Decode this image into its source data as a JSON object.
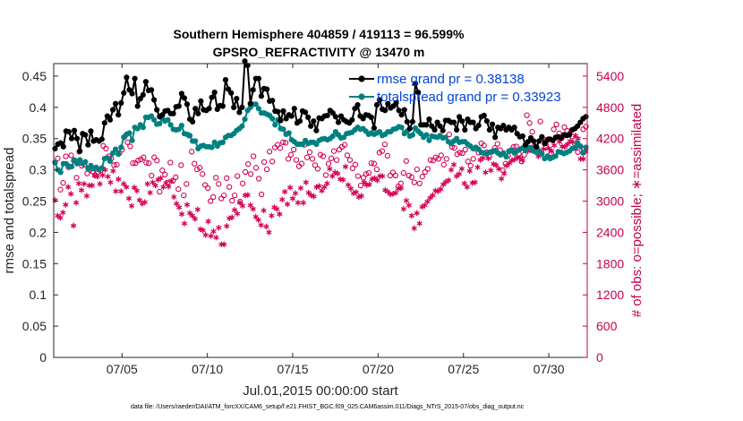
{
  "title_line1": "Southern Hemisphere 404859 / 419113 = 96.599%",
  "title_line2": "GPSRO_REFRACTIVITY @ 13470 m",
  "footer": "data file: /Users/raeder/DAI/ATM_forcXX/CAM6_setup/f.e21.FHIST_BGC.f09_025.CAM6assim.011/Diags_NTrS_2015-07/obs_diag_output.nc",
  "colors": {
    "rmse": "#000000",
    "spread": "#008080",
    "obs": "#d40055",
    "right_axis": "#c6004f",
    "legend_text": "#0044dd"
  },
  "chart_data": {
    "type": "line",
    "xlabel": "Jul.01,2015 00:00:00 start",
    "ylabel_left": "rmse and totalspread",
    "ylabel_right": "# of obs: o=possible; ∗=assimilated",
    "x_ticks": [
      "07/05",
      "07/10",
      "07/15",
      "07/20",
      "07/25",
      "07/30"
    ],
    "y_ticks_left": [
      "0",
      "0.05",
      "0.1",
      "0.15",
      "0.2",
      "0.25",
      "0.3",
      "0.35",
      "0.4",
      "0.45"
    ],
    "y_ticks_right": [
      "0",
      "600",
      "1200",
      "1800",
      "2400",
      "3000",
      "3600",
      "4200",
      "4800",
      "5400"
    ],
    "ylim_left": [
      0,
      0.47
    ],
    "ylim_right": [
      0,
      5640
    ],
    "xlim_days": [
      1,
      32.25
    ],
    "x_unit": "day of Jul 2015",
    "legend_location": "top-right",
    "grid": false,
    "series": [
      {
        "name": "rmse grand pr = 0.38138",
        "marker": "filled-circle",
        "line": true,
        "y_axis": "left",
        "values": [
          0.334,
          0.341,
          0.343,
          0.337,
          0.362,
          0.361,
          0.35,
          0.363,
          0.35,
          0.33,
          0.358,
          0.356,
          0.34,
          0.362,
          0.346,
          0.348,
          0.346,
          0.349,
          0.375,
          0.386,
          0.38,
          0.396,
          0.406,
          0.388,
          0.407,
          0.423,
          0.448,
          0.428,
          0.422,
          0.446,
          0.402,
          0.414,
          0.42,
          0.441,
          0.427,
          0.428,
          0.412,
          0.396,
          0.385,
          0.388,
          0.394,
          0.395,
          0.39,
          0.39,
          0.401,
          0.402,
          0.422,
          0.415,
          0.405,
          0.381,
          0.377,
          0.398,
          0.39,
          0.41,
          0.396,
          0.395,
          0.398,
          0.416,
          0.424,
          0.397,
          0.403,
          0.402,
          0.444,
          0.429,
          0.423,
          0.4,
          0.414,
          0.392,
          0.4,
          0.474,
          0.467,
          0.406,
          0.428,
          0.446,
          0.446,
          0.418,
          0.43,
          0.429,
          0.41,
          0.411,
          0.394,
          0.393,
          0.379,
          0.394,
          0.382,
          0.388,
          0.386,
          0.398,
          0.375,
          0.378,
          0.394,
          0.392,
          0.384,
          0.37,
          0.378,
          0.363,
          0.383,
          0.382,
          0.386,
          0.387,
          0.395,
          0.391,
          0.385,
          0.376,
          0.386,
          0.38,
          0.377,
          0.375,
          0.38,
          0.398,
          0.404,
          0.386,
          0.382,
          0.388,
          0.387,
          0.384,
          0.367,
          0.404,
          0.412,
          0.397,
          0.395,
          0.406,
          0.399,
          0.402,
          0.407,
          0.395,
          0.388,
          0.396,
          0.377,
          0.366,
          0.377,
          0.438,
          0.424,
          0.372,
          0.372,
          0.372,
          0.381,
          0.37,
          0.364,
          0.376,
          0.37,
          0.363,
          0.379,
          0.379,
          0.376,
          0.376,
          0.364,
          0.385,
          0.378,
          0.364,
          0.381,
          0.376,
          0.376,
          0.366,
          0.371,
          0.385,
          0.387,
          0.378,
          0.364,
          0.373,
          0.352,
          0.368,
          0.366,
          0.371,
          0.364,
          0.368,
          0.364,
          0.368,
          0.358,
          0.353,
          0.354,
          0.34,
          0.345,
          0.351,
          0.346,
          0.337,
          0.346,
          0.353,
          0.342,
          0.348,
          0.349,
          0.347,
          0.352,
          0.353,
          0.351,
          0.356,
          0.355,
          0.356,
          0.364,
          0.366,
          0.37,
          0.376,
          0.382,
          0.385
        ]
      },
      {
        "name": "totalspread grand pr = 0.33923",
        "marker": "filled-circle",
        "line": true,
        "y_axis": "left",
        "values": [
          0.312,
          0.3,
          0.296,
          0.31,
          0.31,
          0.306,
          0.305,
          0.316,
          0.31,
          0.316,
          0.31,
          0.313,
          0.302,
          0.307,
          0.302,
          0.304,
          0.3,
          0.303,
          0.318,
          0.319,
          0.314,
          0.327,
          0.333,
          0.325,
          0.336,
          0.352,
          0.357,
          0.359,
          0.347,
          0.368,
          0.366,
          0.372,
          0.368,
          0.384,
          0.384,
          0.386,
          0.38,
          0.373,
          0.374,
          0.382,
          0.378,
          0.38,
          0.372,
          0.365,
          0.364,
          0.365,
          0.371,
          0.358,
          0.357,
          0.355,
          0.346,
          0.346,
          0.334,
          0.338,
          0.339,
          0.337,
          0.337,
          0.336,
          0.344,
          0.338,
          0.343,
          0.344,
          0.352,
          0.355,
          0.355,
          0.358,
          0.363,
          0.366,
          0.37,
          0.381,
          0.395,
          0.4,
          0.405,
          0.405,
          0.398,
          0.391,
          0.391,
          0.389,
          0.387,
          0.382,
          0.372,
          0.38,
          0.366,
          0.365,
          0.357,
          0.359,
          0.348,
          0.345,
          0.341,
          0.341,
          0.341,
          0.347,
          0.342,
          0.344,
          0.344,
          0.341,
          0.347,
          0.349,
          0.35,
          0.348,
          0.35,
          0.354,
          0.361,
          0.356,
          0.351,
          0.352,
          0.358,
          0.359,
          0.36,
          0.364,
          0.368,
          0.365,
          0.366,
          0.362,
          0.357,
          0.359,
          0.357,
          0.359,
          0.361,
          0.355,
          0.357,
          0.361,
          0.361,
          0.365,
          0.366,
          0.369,
          0.368,
          0.358,
          0.362,
          0.354,
          0.356,
          0.367,
          0.362,
          0.358,
          0.352,
          0.356,
          0.347,
          0.354,
          0.353,
          0.352,
          0.355,
          0.351,
          0.352,
          0.345,
          0.342,
          0.346,
          0.35,
          0.344,
          0.345,
          0.345,
          0.341,
          0.338,
          0.334,
          0.336,
          0.333,
          0.328,
          0.327,
          0.326,
          0.328,
          0.329,
          0.331,
          0.327,
          0.324,
          0.327,
          0.321,
          0.33,
          0.332,
          0.327,
          0.33,
          0.333,
          0.335,
          0.331,
          0.336,
          0.335,
          0.33,
          0.328,
          0.33,
          0.326,
          0.318,
          0.322,
          0.318,
          0.32,
          0.322,
          0.329,
          0.328,
          0.326,
          0.328,
          0.33,
          0.334,
          0.336,
          0.343,
          0.338,
          0.327,
          0.336
        ]
      },
      {
        "name": "obs possible",
        "marker": "open-circle",
        "line": false,
        "y_axis": "right",
        "values": [
          3740,
          3820,
          3220,
          3350,
          3860,
          3650,
          3880,
          3780,
          3450,
          3950,
          3680,
          3700,
          3530,
          3600,
          3570,
          3500,
          3560,
          3590,
          4060,
          4010,
          3860,
          3820,
          3690,
          3700,
          3920,
          3990,
          4240,
          4130,
          4050,
          3730,
          3730,
          3780,
          3800,
          3840,
          3740,
          3730,
          3490,
          3840,
          3780,
          3180,
          3590,
          3510,
          3350,
          3740,
          3390,
          3460,
          3230,
          3690,
          3110,
          3330,
          4260,
          3950,
          3720,
          3610,
          3640,
          3520,
          3310,
          3250,
          3000,
          3080,
          3450,
          3330,
          3050,
          3110,
          3440,
          3270,
          3010,
          3110,
          3480,
          2990,
          3340,
          3560,
          3710,
          3520,
          3860,
          3640,
          3430,
          3130,
          3750,
          3610,
          3950,
          3760,
          4030,
          4080,
          4020,
          4130,
          4120,
          3810,
          3890,
          3990,
          3790,
          3670,
          3720,
          4080,
          3840,
          3940,
          3810,
          3690,
          3620,
          3890,
          3860,
          3500,
          3720,
          3820,
          3960,
          3790,
          3990,
          4040,
          4080,
          3880,
          3790,
          3630,
          3700,
          3480,
          3300,
          3450,
          3520,
          3540,
          3730,
          3720,
          3610,
          3930,
          3960,
          4090,
          3870,
          3490,
          3550,
          3490,
          3280,
          3340,
          3540,
          3770,
          3490,
          3460,
          3360,
          3610,
          3340,
          3470,
          3560,
          3620,
          3790,
          3780,
          3840,
          3810,
          3880,
          3700,
          3810,
          4280,
          4040,
          4020,
          3900,
          3930,
          3920,
          3990,
          3760,
          3680,
          3810,
          4000,
          3930,
          4110,
          4070,
          3940,
          3850,
          3950,
          4020,
          4100,
          3980,
          3590,
          3720,
          3870,
          3970,
          4040,
          4050,
          3910,
          3760,
          3890,
          4650,
          4500,
          4330,
          4040,
          3990,
          4530,
          4190,
          4040,
          4190,
          3920,
          4380,
          4470,
          4300,
          4210,
          4420,
          4350,
          4300,
          4240,
          4020,
          3940,
          4050,
          4380,
          4430
        ]
      },
      {
        "name": "obs assimilated",
        "marker": "asterisk",
        "line": false,
        "y_axis": "right",
        "values": [
          3020,
          2720,
          2680,
          2780,
          2930,
          3270,
          3140,
          2530,
          2970,
          3340,
          3210,
          3330,
          3100,
          3300,
          3300,
          3490,
          3470,
          3330,
          3500,
          3600,
          3470,
          3360,
          3580,
          3190,
          3420,
          3190,
          3330,
          3270,
          3050,
          2910,
          3260,
          3200,
          3020,
          2950,
          2980,
          3330,
          3160,
          3360,
          3300,
          3410,
          3440,
          3270,
          3350,
          3280,
          3390,
          3080,
          2950,
          2880,
          2750,
          2570,
          2930,
          2770,
          2720,
          2660,
          2840,
          2460,
          2440,
          2350,
          2610,
          2330,
          2420,
          2300,
          2490,
          2170,
          2170,
          2520,
          2670,
          2690,
          2830,
          2760,
          2970,
          2910,
          3110,
          3120,
          2920,
          2850,
          2700,
          2640,
          2540,
          2820,
          2510,
          2400,
          2720,
          2880,
          2850,
          2750,
          3030,
          3180,
          2940,
          3260,
          3050,
          3150,
          2970,
          3250,
          2970,
          3360,
          3160,
          3110,
          3090,
          3270,
          3290,
          3200,
          3270,
          3340,
          3620,
          3480,
          3550,
          3530,
          3420,
          3410,
          3660,
          3310,
          3240,
          3150,
          3170,
          3080,
          3100,
          3360,
          3310,
          3320,
          3420,
          3440,
          3400,
          3480,
          3480,
          3210,
          3180,
          3130,
          3140,
          3160,
          3240,
          3250,
          2850,
          3010,
          2920,
          2720,
          2480,
          2770,
          2570,
          2890,
          2920,
          2990,
          3060,
          3110,
          3200,
          3190,
          3230,
          3320,
          3370,
          3400,
          3600,
          3700,
          3480,
          3520,
          3620,
          3340,
          3270,
          3580,
          3350,
          3360,
          3650,
          3790,
          3830,
          3550,
          3820,
          3590,
          3710,
          3690,
          3620,
          3430,
          3530,
          3680,
          3730,
          3780,
          3800,
          3840,
          3830,
          3790,
          3990,
          3960,
          3980,
          4050,
          3950,
          3860,
          3900,
          4000,
          4110,
          4010,
          3960,
          4070,
          4210,
          4140,
          4050,
          4040,
          4090,
          4150,
          4130,
          4260,
          4200,
          3810,
          3810,
          3960
        ]
      }
    ]
  }
}
